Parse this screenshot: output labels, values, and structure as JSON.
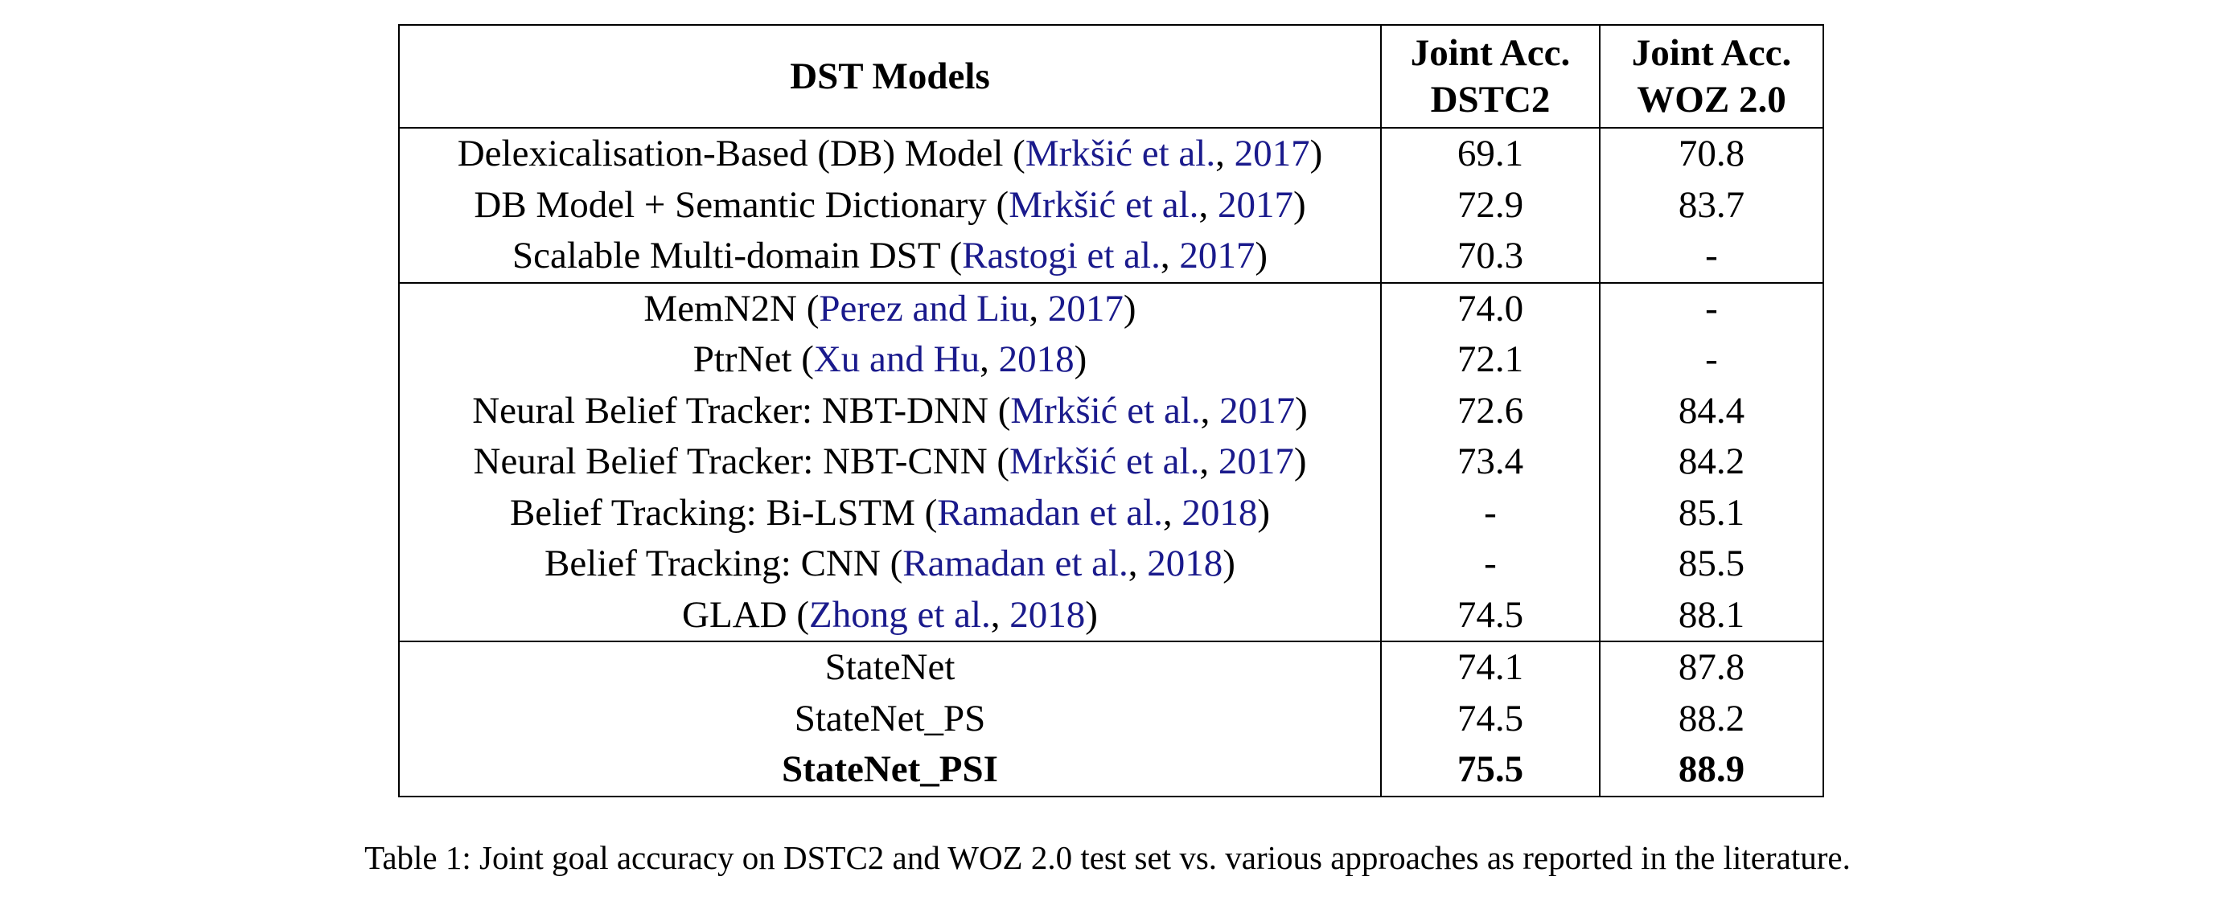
{
  "table": {
    "headers": {
      "model": "DST Models",
      "dstc2_line1": "Joint Acc.",
      "dstc2_line2": "DSTC2",
      "woz_line1": "Joint Acc.",
      "woz_line2": "WOZ 2.0"
    },
    "rows": [
      {
        "model": "Delexicalisation-Based (DB) Model (",
        "cite": "Mrkšić et al.",
        "sep": ", ",
        "year": "2017",
        "close": ")",
        "dstc2": "69.1",
        "woz": "70.8"
      },
      {
        "model": "DB Model + Semantic Dictionary (",
        "cite": "Mrkšić et al.",
        "sep": ", ",
        "year": "2017",
        "close": ")",
        "dstc2": "72.9",
        "woz": "83.7"
      },
      {
        "model": "Scalable Multi-domain DST (",
        "cite": "Rastogi et al.",
        "sep": ", ",
        "year": "2017",
        "close": ")",
        "dstc2": "70.3",
        "woz": "-"
      },
      {
        "model": "MemN2N (",
        "cite": "Perez and Liu",
        "sep": ", ",
        "year": "2017",
        "close": ")",
        "dstc2": "74.0",
        "woz": "-"
      },
      {
        "model": "PtrNet (",
        "cite": "Xu and Hu",
        "sep": ", ",
        "year": "2018",
        "close": ")",
        "dstc2": "72.1",
        "woz": "-"
      },
      {
        "model": "Neural Belief Tracker: NBT-DNN (",
        "cite": "Mrkšić et al.",
        "sep": ", ",
        "year": "2017",
        "close": ")",
        "dstc2": "72.6",
        "woz": "84.4"
      },
      {
        "model": "Neural Belief Tracker: NBT-CNN (",
        "cite": "Mrkšić et al.",
        "sep": ", ",
        "year": "2017",
        "close": ")",
        "dstc2": "73.4",
        "woz": "84.2"
      },
      {
        "model": "Belief Tracking: Bi-LSTM (",
        "cite": "Ramadan et al.",
        "sep": ", ",
        "year": "2018",
        "close": ")",
        "dstc2": "-",
        "woz": "85.1"
      },
      {
        "model": "Belief Tracking: CNN (",
        "cite": "Ramadan et al.",
        "sep": ", ",
        "year": "2018",
        "close": ")",
        "dstc2": "-",
        "woz": "85.5"
      },
      {
        "model": "GLAD (",
        "cite": "Zhong et al.",
        "sep": ", ",
        "year": "2018",
        "close": ")",
        "dstc2": "74.5",
        "woz": "88.1"
      },
      {
        "model": "StateNet",
        "cite": "",
        "sep": "",
        "year": "",
        "close": "",
        "dstc2": "74.1",
        "woz": "87.8"
      },
      {
        "model": "StateNet_PS",
        "cite": "",
        "sep": "",
        "year": "",
        "close": "",
        "dstc2": "74.5",
        "woz": "88.2"
      },
      {
        "model": "StateNet_PSI",
        "cite": "",
        "sep": "",
        "year": "",
        "close": "",
        "dstc2": "75.5",
        "woz": "88.9"
      }
    ]
  },
  "caption": "Table 1: Joint goal accuracy on DSTC2 and WOZ 2.0 test set vs. various approaches as reported in the literature."
}
